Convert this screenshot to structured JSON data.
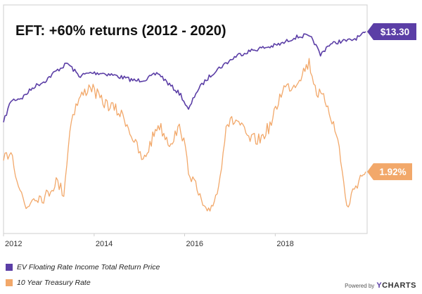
{
  "chart_data": {
    "type": "line",
    "title": "EFT: +60% returns (2012 - 2020)",
    "x_ticks": [
      "2012",
      "2014",
      "2016",
      "2018"
    ],
    "xlim": [
      "2012-01-01",
      "2020-01-01"
    ],
    "grid": false,
    "legend_position": "bottom-left",
    "series": [
      {
        "name": "EV Floating Rate Income Total Return Price",
        "color": "#5b3ea6",
        "end_label": "$13.30",
        "points": [
          {
            "x": "2012-01-01",
            "y": 0.08
          },
          {
            "x": "2012-03-01",
            "y": 0.3
          },
          {
            "x": "2012-06-01",
            "y": 0.33
          },
          {
            "x": "2012-09-01",
            "y": 0.44
          },
          {
            "x": "2012-12-01",
            "y": 0.5
          },
          {
            "x": "2013-03-01",
            "y": 0.6
          },
          {
            "x": "2013-06-01",
            "y": 0.68
          },
          {
            "x": "2013-09-01",
            "y": 0.55
          },
          {
            "x": "2013-12-01",
            "y": 0.58
          },
          {
            "x": "2014-03-01",
            "y": 0.58
          },
          {
            "x": "2014-06-01",
            "y": 0.56
          },
          {
            "x": "2014-09-01",
            "y": 0.53
          },
          {
            "x": "2014-12-01",
            "y": 0.5
          },
          {
            "x": "2015-03-01",
            "y": 0.52
          },
          {
            "x": "2015-06-01",
            "y": 0.58
          },
          {
            "x": "2015-09-01",
            "y": 0.46
          },
          {
            "x": "2015-12-01",
            "y": 0.36
          },
          {
            "x": "2016-02-01",
            "y": 0.2
          },
          {
            "x": "2016-04-01",
            "y": 0.38
          },
          {
            "x": "2016-06-01",
            "y": 0.48
          },
          {
            "x": "2016-09-01",
            "y": 0.6
          },
          {
            "x": "2016-12-01",
            "y": 0.68
          },
          {
            "x": "2017-03-01",
            "y": 0.76
          },
          {
            "x": "2017-06-01",
            "y": 0.8
          },
          {
            "x": "2017-09-01",
            "y": 0.83
          },
          {
            "x": "2017-12-01",
            "y": 0.85
          },
          {
            "x": "2018-03-01",
            "y": 0.88
          },
          {
            "x": "2018-06-01",
            "y": 0.94
          },
          {
            "x": "2018-09-01",
            "y": 0.96
          },
          {
            "x": "2018-11-01",
            "y": 0.92
          },
          {
            "x": "2019-01-01",
            "y": 0.76
          },
          {
            "x": "2019-03-01",
            "y": 0.86
          },
          {
            "x": "2019-06-01",
            "y": 0.9
          },
          {
            "x": "2019-09-01",
            "y": 0.91
          },
          {
            "x": "2019-12-01",
            "y": 0.96
          },
          {
            "x": "2020-01-01",
            "y": 1.0
          }
        ]
      },
      {
        "name": "10 Year Treasury Rate",
        "color": "#f2a86a",
        "end_label": "1.92%",
        "points": [
          {
            "x": "2012-01-01",
            "y": 0.35
          },
          {
            "x": "2012-03-01",
            "y": 0.42
          },
          {
            "x": "2012-05-01",
            "y": 0.2
          },
          {
            "x": "2012-07-01",
            "y": 0.05
          },
          {
            "x": "2012-09-01",
            "y": 0.13
          },
          {
            "x": "2012-12-01",
            "y": 0.12
          },
          {
            "x": "2013-03-01",
            "y": 0.22
          },
          {
            "x": "2013-05-01",
            "y": 0.15
          },
          {
            "x": "2013-07-01",
            "y": 0.62
          },
          {
            "x": "2013-09-01",
            "y": 0.73
          },
          {
            "x": "2013-12-01",
            "y": 0.82
          },
          {
            "x": "2014-03-01",
            "y": 0.72
          },
          {
            "x": "2014-06-01",
            "y": 0.68
          },
          {
            "x": "2014-09-01",
            "y": 0.62
          },
          {
            "x": "2014-12-01",
            "y": 0.45
          },
          {
            "x": "2015-02-01",
            "y": 0.34
          },
          {
            "x": "2015-06-01",
            "y": 0.58
          },
          {
            "x": "2015-09-01",
            "y": 0.46
          },
          {
            "x": "2015-12-01",
            "y": 0.56
          },
          {
            "x": "2016-02-01",
            "y": 0.3
          },
          {
            "x": "2016-07-01",
            "y": 0.0
          },
          {
            "x": "2016-10-01",
            "y": 0.18
          },
          {
            "x": "2016-12-01",
            "y": 0.58
          },
          {
            "x": "2017-03-01",
            "y": 0.6
          },
          {
            "x": "2017-06-01",
            "y": 0.48
          },
          {
            "x": "2017-09-01",
            "y": 0.48
          },
          {
            "x": "2017-12-01",
            "y": 0.58
          },
          {
            "x": "2018-03-01",
            "y": 0.8
          },
          {
            "x": "2018-06-01",
            "y": 0.82
          },
          {
            "x": "2018-10-01",
            "y": 0.96
          },
          {
            "x": "2018-12-01",
            "y": 0.78
          },
          {
            "x": "2019-03-01",
            "y": 0.7
          },
          {
            "x": "2019-06-01",
            "y": 0.44
          },
          {
            "x": "2019-08-01",
            "y": 0.05
          },
          {
            "x": "2019-10-01",
            "y": 0.18
          },
          {
            "x": "2019-12-01",
            "y": 0.26
          },
          {
            "x": "2020-01-01",
            "y": 0.28
          }
        ]
      }
    ]
  },
  "footer": {
    "powered_by": "Powered by",
    "brand_y": "Y",
    "brand_rest": "CHARTS"
  }
}
